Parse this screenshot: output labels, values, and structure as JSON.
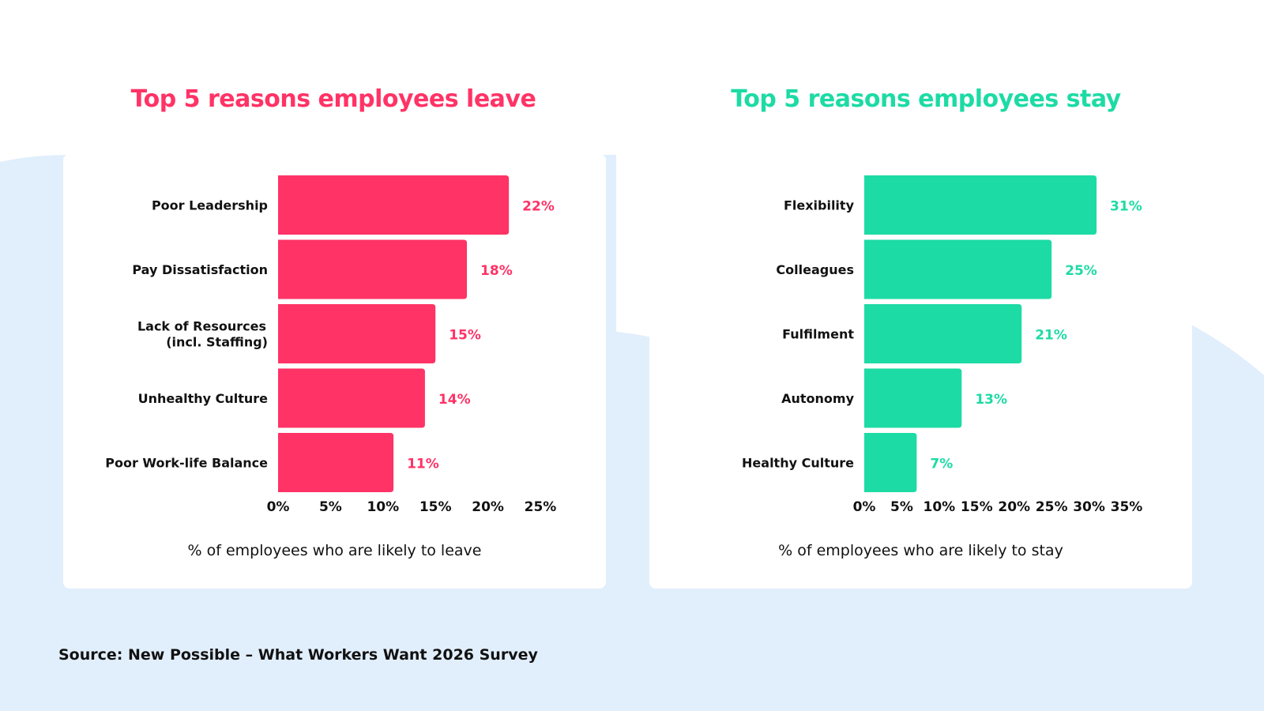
{
  "colors": {
    "leave": "#FF3366",
    "stay": "#1DDBA4",
    "background": "#E1EEFC"
  },
  "source": "Source: New Possible – What Workers Want 2026 Survey",
  "chart_data": [
    {
      "type": "bar",
      "orientation": "horizontal",
      "title": "Top 5 reasons employees leave",
      "categories": [
        "Poor Leadership",
        "Pay Dissatisfaction",
        "Lack of Resources\n(incl. Staffing)",
        "Unhealthy Culture",
        "Poor Work-life Balance"
      ],
      "values": [
        22,
        18,
        15,
        14,
        11
      ],
      "data_labels": [
        "22%",
        "18%",
        "15%",
        "14%",
        "11%"
      ],
      "xlabel": "% of employees who are likely to leave",
      "xlim": [
        0,
        25
      ],
      "xticks": [
        "0%",
        "5%",
        "10%",
        "15%",
        "20%",
        "25%"
      ],
      "grid": false,
      "color": "#FF3366"
    },
    {
      "type": "bar",
      "orientation": "horizontal",
      "title": "Top 5 reasons employees stay",
      "categories": [
        "Flexibility",
        "Colleagues",
        "Fulfilment",
        "Autonomy",
        "Healthy Culture"
      ],
      "values": [
        31,
        25,
        21,
        13,
        7
      ],
      "data_labels": [
        "31%",
        "25%",
        "21%",
        "13%",
        "7%"
      ],
      "xlabel": "% of employees who are likely to stay",
      "xlim": [
        0,
        35
      ],
      "xticks": [
        "0%",
        "5%",
        "10%",
        "15%",
        "20%",
        "25%",
        "30%",
        "35%"
      ],
      "grid": false,
      "color": "#1DDBA4"
    }
  ]
}
